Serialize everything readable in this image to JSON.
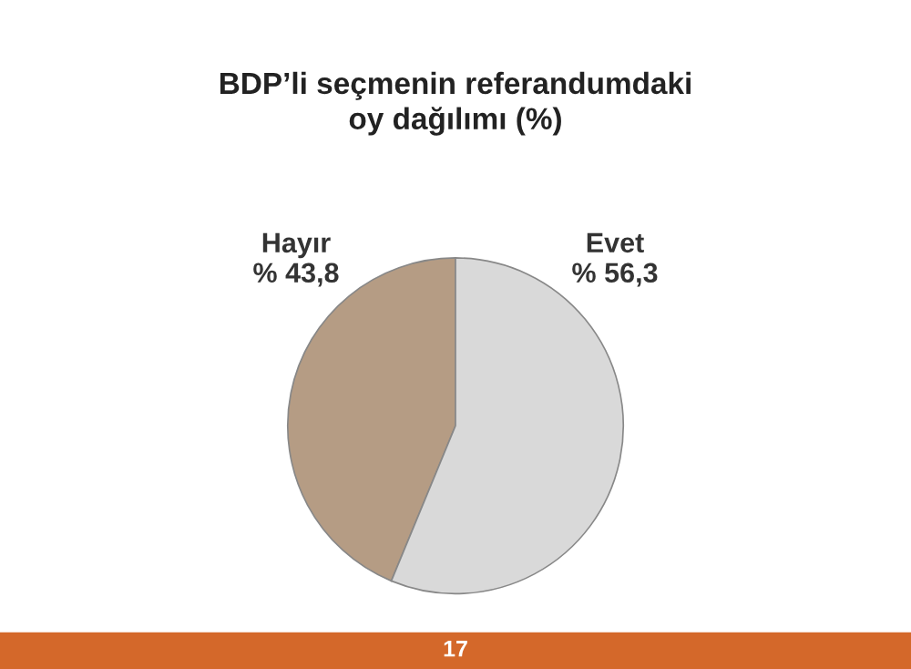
{
  "chart_data": {
    "type": "pie",
    "title": "BDP’li seçmenin referandumdaki\noy dağılımı (%)",
    "categories": [
      "Hayır",
      "Evet"
    ],
    "values": [
      43.8,
      56.3
    ],
    "value_labels": [
      "% 43,8",
      "% 56,3"
    ],
    "colors": [
      "#b59c84",
      "#d9d9d9"
    ],
    "legend": false,
    "annotations": [
      "17"
    ]
  }
}
